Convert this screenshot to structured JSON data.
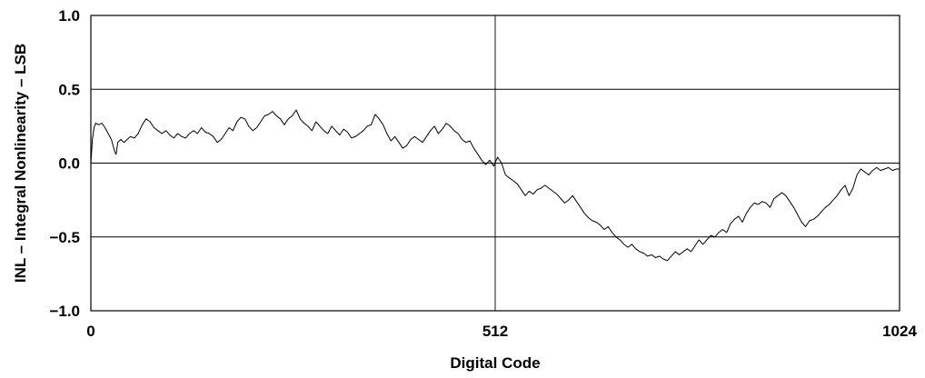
{
  "chart_data": {
    "type": "line",
    "xlabel": "Digital Code",
    "ylabel": "INL – Integral Nonlinearity – LSB",
    "xlim": [
      0,
      1024
    ],
    "ylim": [
      -1.0,
      1.0
    ],
    "x_ticks": [
      "0",
      "512",
      "1024"
    ],
    "y_ticks": [
      "1.0",
      "0.5",
      "0.0",
      "−0.5",
      "−1.0"
    ],
    "grid": true,
    "series": [
      {
        "points": [
          [
            0,
            0.0
          ],
          [
            2,
            0.16
          ],
          [
            4,
            0.24
          ],
          [
            6,
            0.27
          ],
          [
            10,
            0.26
          ],
          [
            14,
            0.27
          ],
          [
            18,
            0.24
          ],
          [
            22,
            0.2
          ],
          [
            26,
            0.16
          ],
          [
            30,
            0.08
          ],
          [
            32,
            0.06
          ],
          [
            34,
            0.14
          ],
          [
            38,
            0.16
          ],
          [
            42,
            0.14
          ],
          [
            46,
            0.16
          ],
          [
            50,
            0.18
          ],
          [
            55,
            0.17
          ],
          [
            60,
            0.2
          ],
          [
            65,
            0.26
          ],
          [
            70,
            0.3
          ],
          [
            75,
            0.28
          ],
          [
            80,
            0.24
          ],
          [
            85,
            0.22
          ],
          [
            90,
            0.2
          ],
          [
            95,
            0.22
          ],
          [
            100,
            0.19
          ],
          [
            105,
            0.17
          ],
          [
            110,
            0.2
          ],
          [
            115,
            0.18
          ],
          [
            120,
            0.17
          ],
          [
            125,
            0.2
          ],
          [
            130,
            0.22
          ],
          [
            135,
            0.2
          ],
          [
            140,
            0.24
          ],
          [
            145,
            0.21
          ],
          [
            150,
            0.2
          ],
          [
            155,
            0.18
          ],
          [
            160,
            0.14
          ],
          [
            165,
            0.16
          ],
          [
            170,
            0.2
          ],
          [
            175,
            0.24
          ],
          [
            180,
            0.22
          ],
          [
            185,
            0.28
          ],
          [
            190,
            0.31
          ],
          [
            195,
            0.3
          ],
          [
            200,
            0.25
          ],
          [
            205,
            0.22
          ],
          [
            210,
            0.24
          ],
          [
            215,
            0.28
          ],
          [
            220,
            0.32
          ],
          [
            225,
            0.33
          ],
          [
            230,
            0.35
          ],
          [
            235,
            0.32
          ],
          [
            240,
            0.3
          ],
          [
            245,
            0.26
          ],
          [
            250,
            0.3
          ],
          [
            255,
            0.32
          ],
          [
            260,
            0.36
          ],
          [
            265,
            0.3
          ],
          [
            270,
            0.27
          ],
          [
            275,
            0.25
          ],
          [
            280,
            0.22
          ],
          [
            285,
            0.28
          ],
          [
            290,
            0.25
          ],
          [
            295,
            0.22
          ],
          [
            300,
            0.2
          ],
          [
            305,
            0.25
          ],
          [
            310,
            0.22
          ],
          [
            315,
            0.19
          ],
          [
            320,
            0.23
          ],
          [
            325,
            0.21
          ],
          [
            330,
            0.17
          ],
          [
            335,
            0.18
          ],
          [
            340,
            0.2
          ],
          [
            345,
            0.22
          ],
          [
            350,
            0.25
          ],
          [
            355,
            0.26
          ],
          [
            360,
            0.33
          ],
          [
            365,
            0.3
          ],
          [
            370,
            0.26
          ],
          [
            375,
            0.2
          ],
          [
            380,
            0.15
          ],
          [
            385,
            0.18
          ],
          [
            390,
            0.14
          ],
          [
            395,
            0.1
          ],
          [
            400,
            0.12
          ],
          [
            405,
            0.16
          ],
          [
            410,
            0.18
          ],
          [
            415,
            0.16
          ],
          [
            420,
            0.14
          ],
          [
            425,
            0.18
          ],
          [
            430,
            0.22
          ],
          [
            435,
            0.25
          ],
          [
            440,
            0.2
          ],
          [
            445,
            0.23
          ],
          [
            450,
            0.27
          ],
          [
            455,
            0.25
          ],
          [
            460,
            0.22
          ],
          [
            465,
            0.2
          ],
          [
            470,
            0.16
          ],
          [
            475,
            0.14
          ],
          [
            480,
            0.15
          ],
          [
            485,
            0.1
          ],
          [
            490,
            0.06
          ],
          [
            495,
            0.02
          ],
          [
            500,
            -0.01
          ],
          [
            505,
            0.02
          ],
          [
            510,
            -0.02
          ],
          [
            515,
            0.04
          ],
          [
            520,
            0.0
          ],
          [
            525,
            -0.08
          ],
          [
            530,
            -0.1
          ],
          [
            535,
            -0.12
          ],
          [
            540,
            -0.14
          ],
          [
            545,
            -0.18
          ],
          [
            550,
            -0.22
          ],
          [
            555,
            -0.19
          ],
          [
            560,
            -0.21
          ],
          [
            565,
            -0.18
          ],
          [
            570,
            -0.17
          ],
          [
            575,
            -0.15
          ],
          [
            580,
            -0.17
          ],
          [
            585,
            -0.19
          ],
          [
            590,
            -0.21
          ],
          [
            595,
            -0.24
          ],
          [
            600,
            -0.27
          ],
          [
            605,
            -0.25
          ],
          [
            610,
            -0.22
          ],
          [
            615,
            -0.26
          ],
          [
            620,
            -0.3
          ],
          [
            625,
            -0.34
          ],
          [
            630,
            -0.37
          ],
          [
            635,
            -0.39
          ],
          [
            640,
            -0.4
          ],
          [
            645,
            -0.42
          ],
          [
            650,
            -0.45
          ],
          [
            655,
            -0.43
          ],
          [
            660,
            -0.47
          ],
          [
            665,
            -0.5
          ],
          [
            670,
            -0.52
          ],
          [
            675,
            -0.55
          ],
          [
            680,
            -0.57
          ],
          [
            685,
            -0.55
          ],
          [
            690,
            -0.58
          ],
          [
            695,
            -0.6
          ],
          [
            700,
            -0.61
          ],
          [
            705,
            -0.63
          ],
          [
            710,
            -0.62
          ],
          [
            715,
            -0.64
          ],
          [
            720,
            -0.63
          ],
          [
            725,
            -0.65
          ],
          [
            730,
            -0.66
          ],
          [
            735,
            -0.63
          ],
          [
            740,
            -0.6
          ],
          [
            745,
            -0.62
          ],
          [
            750,
            -0.6
          ],
          [
            755,
            -0.58
          ],
          [
            760,
            -0.6
          ],
          [
            765,
            -0.56
          ],
          [
            770,
            -0.52
          ],
          [
            775,
            -0.55
          ],
          [
            780,
            -0.52
          ],
          [
            785,
            -0.49
          ],
          [
            790,
            -0.5
          ],
          [
            795,
            -0.47
          ],
          [
            800,
            -0.45
          ],
          [
            805,
            -0.47
          ],
          [
            810,
            -0.41
          ],
          [
            815,
            -0.38
          ],
          [
            820,
            -0.36
          ],
          [
            825,
            -0.4
          ],
          [
            830,
            -0.34
          ],
          [
            835,
            -0.3
          ],
          [
            840,
            -0.27
          ],
          [
            845,
            -0.28
          ],
          [
            850,
            -0.26
          ],
          [
            855,
            -0.27
          ],
          [
            860,
            -0.3
          ],
          [
            865,
            -0.24
          ],
          [
            870,
            -0.22
          ],
          [
            875,
            -0.2
          ],
          [
            880,
            -0.22
          ],
          [
            885,
            -0.26
          ],
          [
            890,
            -0.3
          ],
          [
            895,
            -0.35
          ],
          [
            900,
            -0.4
          ],
          [
            905,
            -0.43
          ],
          [
            910,
            -0.39
          ],
          [
            915,
            -0.38
          ],
          [
            920,
            -0.36
          ],
          [
            925,
            -0.33
          ],
          [
            930,
            -0.3
          ],
          [
            935,
            -0.28
          ],
          [
            940,
            -0.25
          ],
          [
            945,
            -0.22
          ],
          [
            950,
            -0.18
          ],
          [
            955,
            -0.15
          ],
          [
            960,
            -0.22
          ],
          [
            965,
            -0.17
          ],
          [
            970,
            -0.08
          ],
          [
            975,
            -0.04
          ],
          [
            980,
            -0.06
          ],
          [
            985,
            -0.08
          ],
          [
            990,
            -0.05
          ],
          [
            995,
            -0.03
          ],
          [
            1000,
            -0.05
          ],
          [
            1005,
            -0.04
          ],
          [
            1010,
            -0.03
          ],
          [
            1015,
            -0.05
          ],
          [
            1020,
            -0.04
          ],
          [
            1024,
            -0.04
          ]
        ]
      }
    ]
  }
}
